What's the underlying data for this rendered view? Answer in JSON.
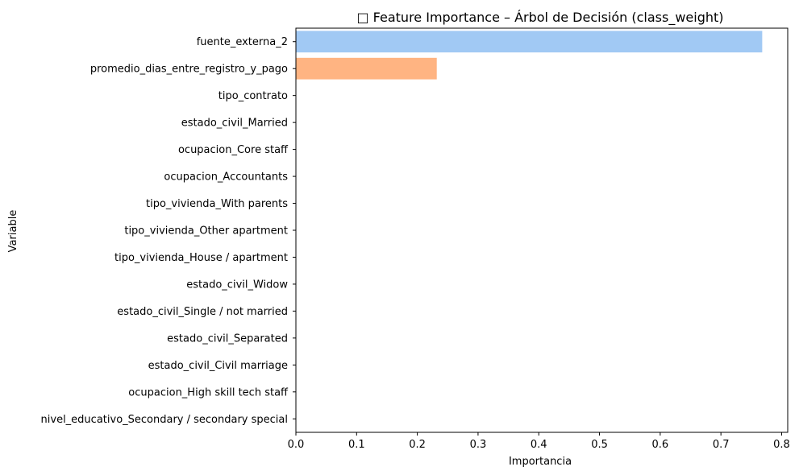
{
  "chart_data": {
    "type": "bar",
    "orientation": "horizontal",
    "title": "□ Feature Importance – Árbol de Decisión (class_weight)",
    "xlabel": "Importancia",
    "ylabel": "Variable",
    "xlim": [
      0,
      0.81
    ],
    "xticks": [
      "0.0",
      "0.1",
      "0.2",
      "0.3",
      "0.4",
      "0.5",
      "0.6",
      "0.7",
      "0.8"
    ],
    "grid": false,
    "categories": [
      "fuente_externa_2",
      "promedio_dias_entre_registro_y_pago",
      "tipo_contrato",
      "estado_civil_Married",
      "ocupacion_Core staff",
      "ocupacion_Accountants",
      "tipo_vivienda_With parents",
      "tipo_vivienda_Other apartment",
      "tipo_vivienda_House / apartment",
      "estado_civil_Widow",
      "estado_civil_Single / not married",
      "estado_civil_Separated",
      "estado_civil_Civil marriage",
      "ocupacion_High skill tech staff",
      "nivel_educativo_Secondary / secondary special"
    ],
    "values": [
      0.768,
      0.232,
      0,
      0,
      0,
      0,
      0,
      0,
      0,
      0,
      0,
      0,
      0,
      0,
      0
    ],
    "colors": [
      "#a1c9f4",
      "#ffb482",
      "#8de5a1",
      "#ff9f9b",
      "#d0bbff",
      "#debb9b",
      "#fab0e4",
      "#cfcfcf",
      "#fffea3",
      "#b9f2f0",
      "#a1c9f4",
      "#ffb482",
      "#8de5a1",
      "#ff9f9b",
      "#d0bbff"
    ]
  }
}
